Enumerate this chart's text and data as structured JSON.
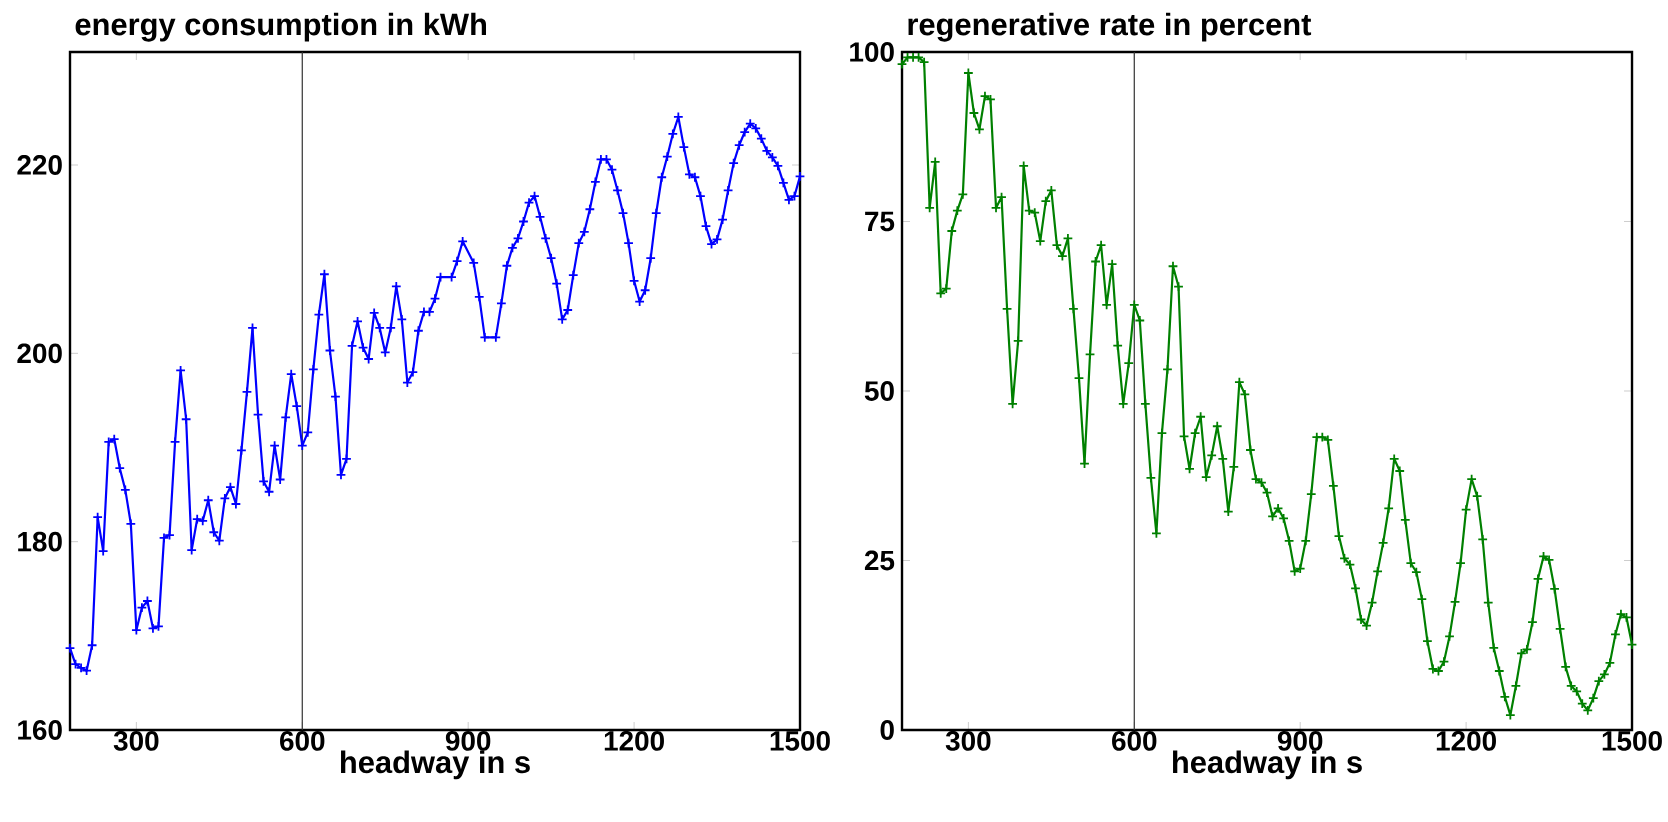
{
  "chart_data": [
    {
      "type": "line",
      "title": "energy consumption in kWh",
      "xlabel": "headway in s",
      "xlim": [
        180,
        1500
      ],
      "ylim": [
        160,
        232
      ],
      "xticks": [
        300,
        600,
        900,
        1200,
        1500
      ],
      "yticks": [
        160,
        180,
        200,
        220
      ],
      "marker": "cross",
      "ref_lines": [
        {
          "axis": "x",
          "value": 600,
          "color": "#333333"
        }
      ],
      "x": [
        180,
        190,
        200,
        210,
        220,
        230,
        240,
        250,
        260,
        270,
        280,
        290,
        300,
        310,
        320,
        330,
        340,
        350,
        360,
        370,
        380,
        390,
        400,
        410,
        420,
        430,
        440,
        450,
        460,
        470,
        480,
        490,
        500,
        510,
        520,
        530,
        540,
        550,
        560,
        570,
        580,
        590,
        600,
        610,
        620,
        630,
        640,
        650,
        660,
        670,
        680,
        690,
        700,
        710,
        720,
        730,
        740,
        750,
        760,
        770,
        780,
        790,
        800,
        810,
        820,
        830,
        840,
        850,
        870,
        880,
        890,
        910,
        920,
        930,
        950,
        960,
        970,
        980,
        990,
        1000,
        1010,
        1020,
        1030,
        1040,
        1050,
        1060,
        1070,
        1080,
        1090,
        1100,
        1110,
        1120,
        1130,
        1140,
        1150,
        1160,
        1170,
        1180,
        1190,
        1200,
        1210,
        1220,
        1230,
        1240,
        1250,
        1260,
        1270,
        1280,
        1290,
        1300,
        1310,
        1320,
        1330,
        1340,
        1350,
        1360,
        1370,
        1380,
        1390,
        1400,
        1410,
        1420,
        1430,
        1440,
        1450,
        1460,
        1470,
        1480,
        1490,
        1500
      ],
      "series": [
        {
          "color": "#0000ff",
          "values": [
            168.7,
            167.0,
            166.6,
            166.3,
            169.0,
            182.6,
            179.0,
            190.6,
            190.9,
            187.8,
            185.5,
            181.9,
            170.6,
            173.0,
            173.7,
            170.8,
            171.0,
            180.4,
            180.7,
            190.6,
            198.2,
            193.0,
            179.1,
            182.4,
            182.2,
            184.4,
            181.0,
            180.1,
            184.6,
            185.8,
            184.0,
            189.7,
            195.9,
            202.7,
            193.5,
            186.4,
            185.3,
            190.2,
            186.6,
            193.2,
            197.8,
            194.4,
            190.2,
            191.6,
            198.3,
            204.1,
            208.4,
            200.3,
            195.4,
            187.1,
            188.8,
            200.8,
            203.4,
            200.6,
            199.4,
            204.3,
            202.7,
            200.1,
            202.7,
            207.1,
            203.6,
            196.9,
            198.0,
            202.4,
            204.4,
            204.4,
            205.8,
            208.1,
            208.1,
            209.8,
            211.9,
            209.6,
            206.0,
            201.7,
            201.7,
            205.3,
            209.3,
            211.2,
            212.2,
            214.0,
            216.0,
            216.7,
            214.5,
            212.2,
            210.1,
            207.4,
            203.6,
            204.6,
            208.3,
            211.7,
            212.9,
            215.3,
            218.2,
            220.6,
            220.6,
            219.5,
            217.3,
            214.9,
            211.7,
            207.7,
            205.5,
            206.7,
            210.1,
            214.9,
            218.7,
            220.9,
            223.3,
            225.1,
            221.9,
            219.0,
            218.7,
            216.7,
            213.5,
            211.6,
            212.1,
            214.2,
            217.3,
            220.2,
            222.1,
            223.5,
            224.4,
            223.9,
            222.8,
            221.5,
            220.8,
            219.9,
            218.1,
            216.3,
            216.7,
            218.8
          ]
        }
      ]
    },
    {
      "type": "line",
      "title": "regenerative rate in percent",
      "xlabel": "headway in s",
      "xlim": [
        180,
        1500
      ],
      "ylim": [
        0,
        100
      ],
      "xticks": [
        300,
        600,
        900,
        1200,
        1500
      ],
      "yticks": [
        0,
        25,
        50,
        75,
        100
      ],
      "marker": "cross",
      "ref_lines": [
        {
          "axis": "x",
          "value": 600,
          "color": "#333333"
        }
      ],
      "x": [
        180,
        190,
        200,
        210,
        220,
        230,
        240,
        250,
        260,
        270,
        280,
        290,
        300,
        310,
        320,
        330,
        340,
        350,
        360,
        370,
        380,
        390,
        400,
        410,
        420,
        430,
        440,
        450,
        460,
        470,
        480,
        490,
        500,
        510,
        520,
        530,
        540,
        550,
        560,
        570,
        580,
        590,
        600,
        610,
        620,
        630,
        640,
        650,
        660,
        670,
        680,
        690,
        700,
        710,
        720,
        730,
        740,
        750,
        760,
        770,
        780,
        790,
        800,
        810,
        820,
        830,
        840,
        850,
        860,
        870,
        880,
        890,
        900,
        910,
        920,
        930,
        940,
        950,
        960,
        970,
        980,
        990,
        1000,
        1010,
        1020,
        1030,
        1040,
        1050,
        1060,
        1070,
        1080,
        1090,
        1100,
        1110,
        1120,
        1130,
        1140,
        1150,
        1160,
        1170,
        1180,
        1190,
        1200,
        1210,
        1220,
        1230,
        1240,
        1250,
        1260,
        1270,
        1280,
        1290,
        1300,
        1310,
        1320,
        1330,
        1340,
        1350,
        1360,
        1370,
        1380,
        1390,
        1400,
        1410,
        1420,
        1430,
        1440,
        1450,
        1460,
        1470,
        1480,
        1490,
        1500
      ],
      "series": [
        {
          "color": "#008000",
          "values": [
            98.2,
            99.2,
            99.2,
            99.2,
            98.5,
            77.0,
            83.8,
            64.4,
            65.1,
            73.6,
            76.6,
            79.0,
            96.9,
            91.0,
            88.6,
            93.5,
            93.0,
            77.0,
            78.6,
            62.1,
            48.1,
            57.4,
            83.2,
            76.6,
            76.3,
            72.1,
            78.0,
            79.6,
            71.5,
            69.9,
            72.5,
            62.1,
            51.9,
            39.3,
            55.4,
            69.1,
            71.5,
            62.7,
            68.7,
            56.7,
            48.1,
            54.1,
            62.7,
            60.4,
            48.1,
            37.2,
            29.0,
            43.8,
            53.2,
            68.4,
            65.4,
            43.3,
            38.5,
            43.8,
            46.2,
            37.3,
            40.5,
            44.8,
            40.0,
            32.2,
            38.8,
            51.3,
            49.5,
            41.3,
            37.0,
            36.5,
            35.0,
            31.5,
            32.7,
            31.2,
            27.9,
            23.4,
            23.8,
            27.9,
            34.8,
            43.2,
            43.2,
            42.8,
            36.0,
            28.6,
            25.3,
            24.4,
            20.9,
            16.3,
            15.4,
            18.8,
            23.4,
            27.6,
            32.7,
            40.0,
            38.2,
            31.0,
            24.6,
            23.3,
            19.3,
            13.1,
            9.0,
            8.7,
            10.1,
            13.8,
            18.9,
            24.6,
            32.5,
            37.0,
            34.5,
            28.1,
            18.8,
            12.1,
            8.7,
            4.9,
            2.2,
            6.5,
            11.3,
            11.9,
            15.9,
            22.3,
            25.6,
            25.1,
            20.8,
            14.9,
            9.3,
            6.5,
            5.7,
            3.9,
            2.9,
            4.7,
            7.2,
            8.2,
            9.9,
            14.1,
            17.1,
            16.6,
            12.6
          ]
        }
      ]
    }
  ]
}
